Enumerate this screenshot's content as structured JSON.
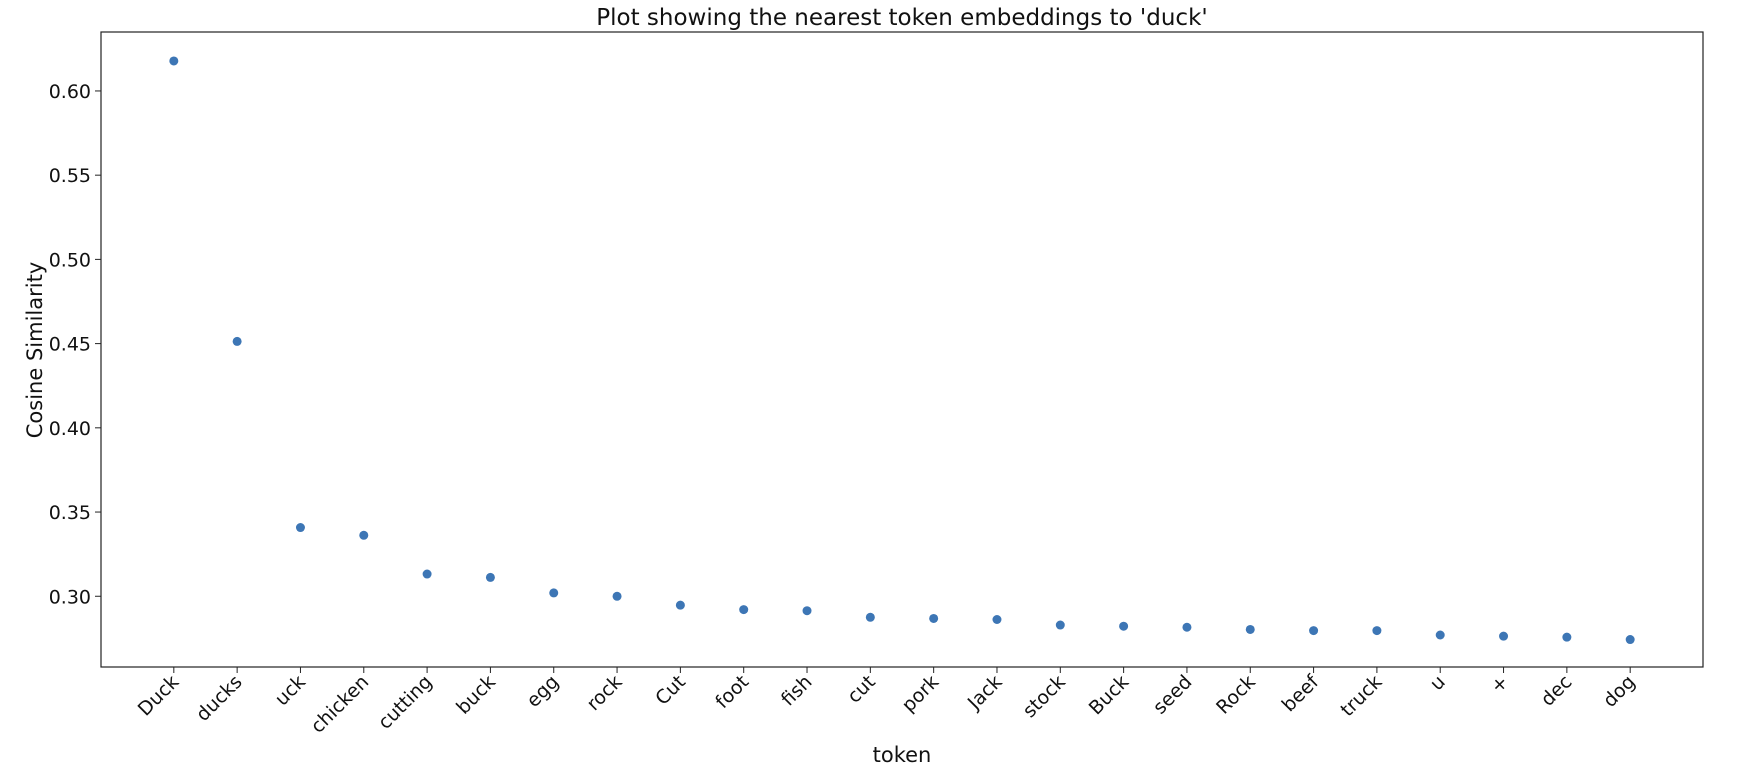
{
  "chart_data": {
    "type": "scatter",
    "title": "Plot showing the nearest token embeddings to 'duck'",
    "x_label": "token",
    "y_label": "Cosine Similarity",
    "categories": [
      "Duck",
      "ducks",
      "uck",
      "chicken",
      "cutting",
      "buck",
      "egg",
      "rock",
      "Cut",
      "foot",
      "fish",
      "cut",
      "pork",
      "Jack",
      "stock",
      "Buck",
      "seed",
      "Rock",
      "beef",
      "truck",
      "u",
      "+",
      "dec",
      "dog"
    ],
    "values": [
      0.6178,
      0.4513,
      0.3408,
      0.3362,
      0.3132,
      0.3112,
      0.302,
      0.3,
      0.2947,
      0.2921,
      0.2914,
      0.2875,
      0.2868,
      0.2862,
      0.2829,
      0.2822,
      0.2816,
      0.2803,
      0.2796,
      0.2796,
      0.277,
      0.2763,
      0.2757,
      0.2743
    ],
    "color": "#3d76b5",
    "ylim": [
      0.258,
      0.635
    ],
    "yticks": [
      {
        "value": 0.3,
        "label": "0.30"
      },
      0.35,
      {
        "value": 0.4,
        "label": "0.40"
      },
      0.45,
      {
        "value": 0.5,
        "label": "0.50"
      },
      0.55,
      {
        "value": 0.6,
        "label": "0.60"
      }
    ],
    "grid": false
  }
}
